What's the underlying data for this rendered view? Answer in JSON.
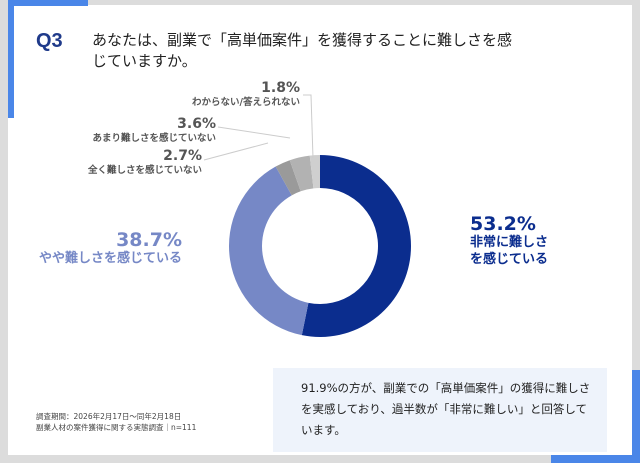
{
  "question": {
    "number": "Q3",
    "text": "あなたは、副業で「高単価案件」を獲得することに難しさを感じていますか。"
  },
  "chart_data": {
    "type": "pie",
    "donut": true,
    "categories": [
      "非常に難しさを感じている",
      "やや難しさを感じている",
      "全く難しさを感じていない",
      "あまり難しさを感じていない",
      "わからない/答えられない"
    ],
    "values": [
      53.2,
      38.7,
      2.7,
      3.6,
      1.8
    ],
    "labels": [
      "53.2%",
      "38.7%",
      "2.7%",
      "3.6%",
      "1.8%"
    ],
    "colors": [
      "#0b2d8e",
      "#7688c6",
      "#9a9a9a",
      "#b2b2b2",
      "#cfcfcf"
    ]
  },
  "note": "91.9%の方が、副業での「高単価案件」の獲得に難しさを実感しており、過半数が「非常に難しい」と回答しています。",
  "source": {
    "period": "調査期間：2026年2月17日～同年2月18日",
    "survey": "副業人材の案件獲得に関する実態調査｜n=111"
  }
}
